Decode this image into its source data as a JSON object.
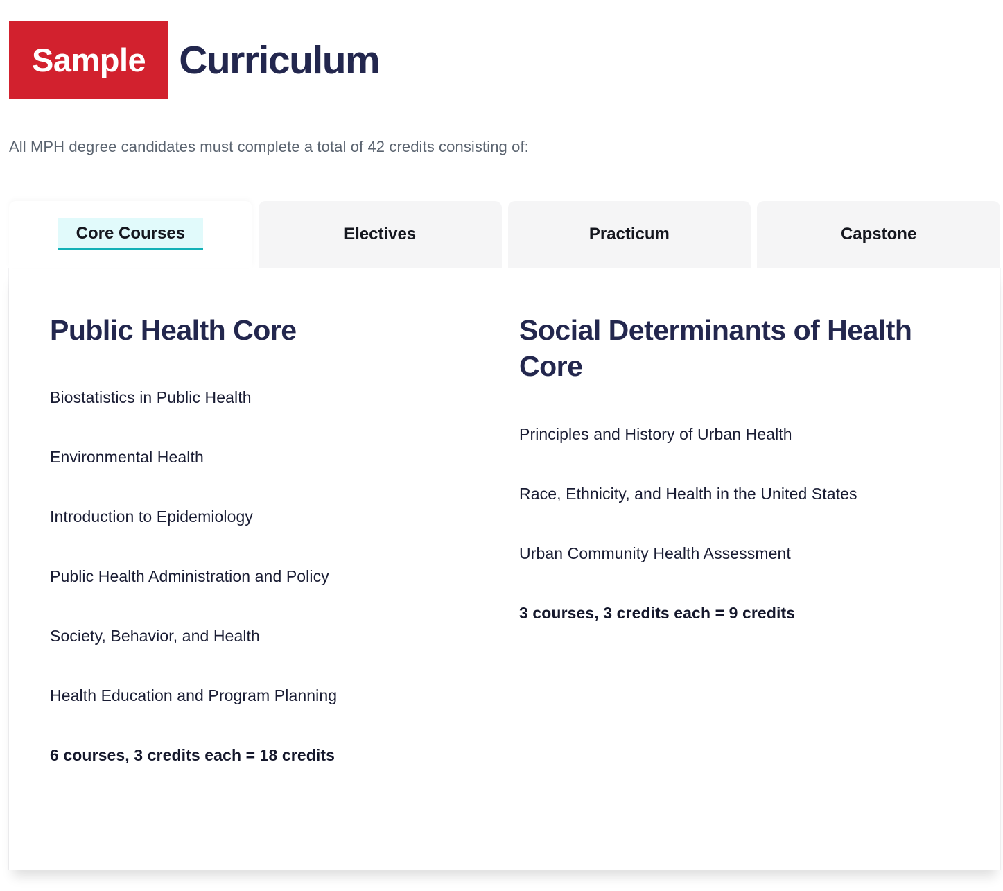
{
  "header": {
    "badge_label": "Sample",
    "title": "Curriculum"
  },
  "intro_text": "All MPH degree candidates must complete a total of 42 credits consisting of:",
  "tabs": [
    {
      "label": "Core Courses",
      "active": true
    },
    {
      "label": "Electives",
      "active": false
    },
    {
      "label": "Practicum",
      "active": false
    },
    {
      "label": "Capstone",
      "active": false
    }
  ],
  "panel": {
    "columns": [
      {
        "heading": "Public Health Core",
        "courses": [
          "Biostatistics in Public Health",
          "Environmental Health",
          "Introduction to Epidemiology",
          "Public Health Administration and Policy",
          "Society, Behavior, and Health",
          "Health Education and Program Planning"
        ],
        "summary": "6 courses, 3 credits each = 18 credits"
      },
      {
        "heading": "Social Determinants of Health Core",
        "courses": [
          "Principles and History of Urban Health",
          "Race, Ethnicity, and Health in the United States",
          "Urban Community Health Assessment"
        ],
        "summary": "3 courses, 3 credits each = 9 credits"
      }
    ]
  },
  "colors": {
    "badge_red": "#D2212E",
    "heading_navy": "#23274E",
    "tab_highlight_cyan": "#E1FAFB",
    "tab_underline_teal": "#14B1B7",
    "inactive_tab_gray": "#F5F5F6",
    "intro_gray": "#5B6470",
    "body_text": "#191C33"
  }
}
